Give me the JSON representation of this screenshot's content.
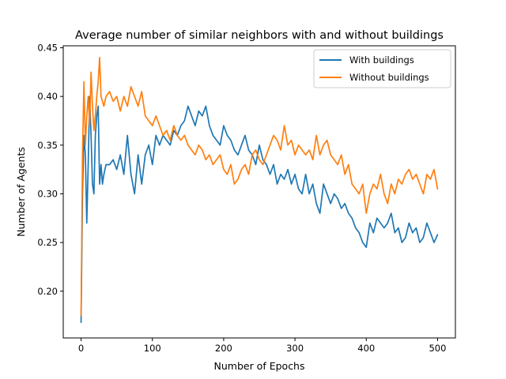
{
  "chart_data": {
    "type": "line",
    "title": "Average number of similar neighbors with and without buildings",
    "xlabel": "Number of Epochs",
    "ylabel": "Number of Agents",
    "xlim": [
      -25,
      525
    ],
    "ylim": [
      0.152,
      0.452
    ],
    "xticks": [
      0,
      100,
      200,
      300,
      400,
      500
    ],
    "xtick_labels": [
      "0",
      "100",
      "200",
      "300",
      "400",
      "500"
    ],
    "yticks": [
      0.2,
      0.25,
      0.3,
      0.35,
      0.4,
      0.45
    ],
    "ytick_labels": [
      "0.20",
      "0.25",
      "0.30",
      "0.35",
      "0.40",
      "0.45"
    ],
    "grid": false,
    "legend_position": "top-right",
    "series": [
      {
        "name": "With buildings",
        "color": "#1f77b4",
        "x": [
          0,
          2,
          4,
          6,
          8,
          10,
          12,
          14,
          16,
          18,
          20,
          22,
          24,
          26,
          28,
          30,
          32,
          35,
          40,
          45,
          50,
          55,
          60,
          65,
          70,
          75,
          80,
          85,
          90,
          95,
          100,
          105,
          110,
          115,
          120,
          125,
          130,
          135,
          140,
          145,
          150,
          155,
          160,
          165,
          170,
          175,
          180,
          185,
          190,
          195,
          200,
          205,
          210,
          215,
          220,
          225,
          230,
          235,
          240,
          245,
          250,
          255,
          260,
          265,
          270,
          275,
          280,
          285,
          290,
          295,
          300,
          305,
          310,
          315,
          320,
          325,
          330,
          335,
          340,
          345,
          350,
          355,
          360,
          365,
          370,
          375,
          380,
          385,
          390,
          395,
          400,
          405,
          410,
          415,
          420,
          425,
          430,
          435,
          440,
          445,
          450,
          455,
          460,
          465,
          470,
          475,
          480,
          485,
          490,
          495,
          500
        ],
        "y": [
          0.168,
          0.3,
          0.36,
          0.34,
          0.27,
          0.33,
          0.4,
          0.36,
          0.31,
          0.3,
          0.36,
          0.38,
          0.39,
          0.31,
          0.33,
          0.31,
          0.32,
          0.33,
          0.33,
          0.335,
          0.325,
          0.34,
          0.32,
          0.36,
          0.32,
          0.3,
          0.34,
          0.31,
          0.34,
          0.35,
          0.33,
          0.36,
          0.35,
          0.36,
          0.355,
          0.35,
          0.365,
          0.36,
          0.37,
          0.375,
          0.39,
          0.38,
          0.37,
          0.385,
          0.38,
          0.39,
          0.37,
          0.36,
          0.355,
          0.35,
          0.37,
          0.36,
          0.355,
          0.345,
          0.34,
          0.35,
          0.36,
          0.345,
          0.34,
          0.33,
          0.35,
          0.335,
          0.33,
          0.32,
          0.33,
          0.31,
          0.32,
          0.315,
          0.325,
          0.31,
          0.32,
          0.305,
          0.3,
          0.32,
          0.3,
          0.31,
          0.29,
          0.28,
          0.31,
          0.3,
          0.29,
          0.3,
          0.295,
          0.285,
          0.29,
          0.28,
          0.275,
          0.265,
          0.26,
          0.25,
          0.245,
          0.27,
          0.26,
          0.275,
          0.27,
          0.265,
          0.27,
          0.28,
          0.26,
          0.265,
          0.25,
          0.255,
          0.27,
          0.26,
          0.265,
          0.25,
          0.255,
          0.27,
          0.26,
          0.25,
          0.258
        ]
      },
      {
        "name": "Without buildings",
        "color": "#ff7f0e",
        "x": [
          0,
          2,
          4,
          6,
          8,
          10,
          12,
          14,
          16,
          18,
          20,
          22,
          24,
          26,
          28,
          30,
          32,
          35,
          40,
          45,
          50,
          55,
          60,
          65,
          70,
          75,
          80,
          85,
          90,
          95,
          100,
          105,
          110,
          115,
          120,
          125,
          130,
          135,
          140,
          145,
          150,
          155,
          160,
          165,
          170,
          175,
          180,
          185,
          190,
          195,
          200,
          205,
          210,
          215,
          220,
          225,
          230,
          235,
          240,
          245,
          250,
          255,
          260,
          265,
          270,
          275,
          280,
          285,
          290,
          295,
          300,
          305,
          310,
          315,
          320,
          325,
          330,
          335,
          340,
          345,
          350,
          355,
          360,
          365,
          370,
          375,
          380,
          385,
          390,
          395,
          400,
          405,
          410,
          415,
          420,
          425,
          430,
          435,
          440,
          445,
          450,
          455,
          460,
          465,
          470,
          475,
          480,
          485,
          490,
          495,
          500
        ],
        "y": [
          0.175,
          0.34,
          0.415,
          0.35,
          0.38,
          0.4,
          0.37,
          0.425,
          0.39,
          0.365,
          0.38,
          0.4,
          0.415,
          0.44,
          0.4,
          0.395,
          0.39,
          0.4,
          0.405,
          0.395,
          0.4,
          0.385,
          0.4,
          0.39,
          0.41,
          0.4,
          0.39,
          0.405,
          0.38,
          0.375,
          0.37,
          0.38,
          0.37,
          0.36,
          0.365,
          0.355,
          0.37,
          0.36,
          0.355,
          0.36,
          0.35,
          0.345,
          0.34,
          0.35,
          0.345,
          0.335,
          0.34,
          0.33,
          0.335,
          0.34,
          0.325,
          0.32,
          0.33,
          0.31,
          0.315,
          0.325,
          0.33,
          0.32,
          0.34,
          0.345,
          0.335,
          0.33,
          0.34,
          0.35,
          0.36,
          0.355,
          0.345,
          0.37,
          0.35,
          0.355,
          0.34,
          0.35,
          0.345,
          0.34,
          0.345,
          0.335,
          0.36,
          0.34,
          0.35,
          0.355,
          0.34,
          0.335,
          0.33,
          0.34,
          0.32,
          0.33,
          0.31,
          0.305,
          0.3,
          0.31,
          0.28,
          0.3,
          0.31,
          0.305,
          0.32,
          0.3,
          0.29,
          0.31,
          0.3,
          0.315,
          0.31,
          0.32,
          0.325,
          0.315,
          0.32,
          0.31,
          0.3,
          0.32,
          0.315,
          0.325,
          0.305
        ]
      }
    ]
  }
}
